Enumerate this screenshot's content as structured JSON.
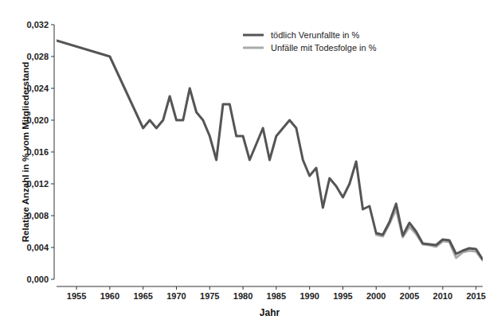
{
  "chart_data": {
    "type": "line",
    "x_label": "Jahr",
    "y_label": "Relative Anzahl in % vom Mitgliederstand",
    "x": [
      1952,
      1960,
      1965,
      1966,
      1967,
      1968,
      1969,
      1970,
      1971,
      1972,
      1973,
      1974,
      1975,
      1976,
      1977,
      1978,
      1979,
      1980,
      1981,
      1982,
      1983,
      1984,
      1985,
      1986,
      1987,
      1988,
      1989,
      1990,
      1991,
      1992,
      1993,
      1994,
      1995,
      1996,
      1997,
      1998,
      1999,
      2000,
      2001,
      2002,
      2003,
      2004,
      2005,
      2006,
      2007,
      2008,
      2009,
      2010,
      2011,
      2012,
      2013,
      2014,
      2015,
      2016
    ],
    "series": [
      {
        "name": "tödlich Verunfallte in %",
        "color": "#555555",
        "values": [
          0.03,
          0.028,
          0.019,
          0.02,
          0.019,
          0.02,
          0.023,
          0.02,
          0.02,
          0.024,
          0.021,
          0.02,
          0.018,
          0.015,
          0.022,
          0.022,
          0.018,
          0.018,
          0.015,
          0.017,
          0.019,
          0.015,
          0.018,
          0.019,
          0.02,
          0.019,
          0.015,
          0.013,
          0.014,
          0.009,
          0.0127,
          0.0117,
          0.0103,
          0.012,
          0.0148,
          0.0088,
          0.0092,
          0.0058,
          0.0056,
          0.0072,
          0.0095,
          0.0055,
          0.0071,
          0.006,
          0.0045,
          0.0044,
          0.0043,
          0.005,
          0.0049,
          0.0032,
          0.0036,
          0.0039,
          0.0038,
          0.0025
        ]
      },
      {
        "name": "Unfälle mit Todesfolge in %",
        "color": "#aaaaaa",
        "values": [
          null,
          null,
          null,
          null,
          null,
          null,
          null,
          null,
          null,
          null,
          null,
          null,
          null,
          null,
          null,
          null,
          null,
          null,
          null,
          null,
          null,
          null,
          null,
          null,
          null,
          null,
          null,
          null,
          null,
          null,
          null,
          null,
          null,
          null,
          null,
          null,
          null,
          0.0056,
          0.0054,
          0.007,
          0.0088,
          0.0053,
          0.0066,
          0.0057,
          0.0044,
          0.0043,
          0.0041,
          0.0048,
          0.0047,
          0.0027,
          0.0034,
          0.0036,
          0.0035,
          0.0024
        ]
      }
    ],
    "xlim": [
      1952,
      2016
    ],
    "xticks": [
      1955,
      1960,
      1965,
      1970,
      1975,
      1980,
      1985,
      1990,
      1995,
      2000,
      2005,
      2010,
      2015
    ],
    "ylim": [
      0,
      0.032
    ],
    "yticks": [
      {
        "value": 0,
        "label": "0,000"
      },
      {
        "value": 0.004,
        "label": "0,004"
      },
      {
        "value": 0.008,
        "label": "0,008"
      },
      {
        "value": 0.012,
        "label": "0,012"
      },
      {
        "value": 0.016,
        "label": "0,016"
      },
      {
        "value": 0.02,
        "label": "0,020"
      },
      {
        "value": 0.024,
        "label": "0,024"
      },
      {
        "value": 0.028,
        "label": "0,028"
      },
      {
        "value": 0.032,
        "label": "0,032"
      }
    ],
    "grid": false,
    "legend": "top"
  }
}
